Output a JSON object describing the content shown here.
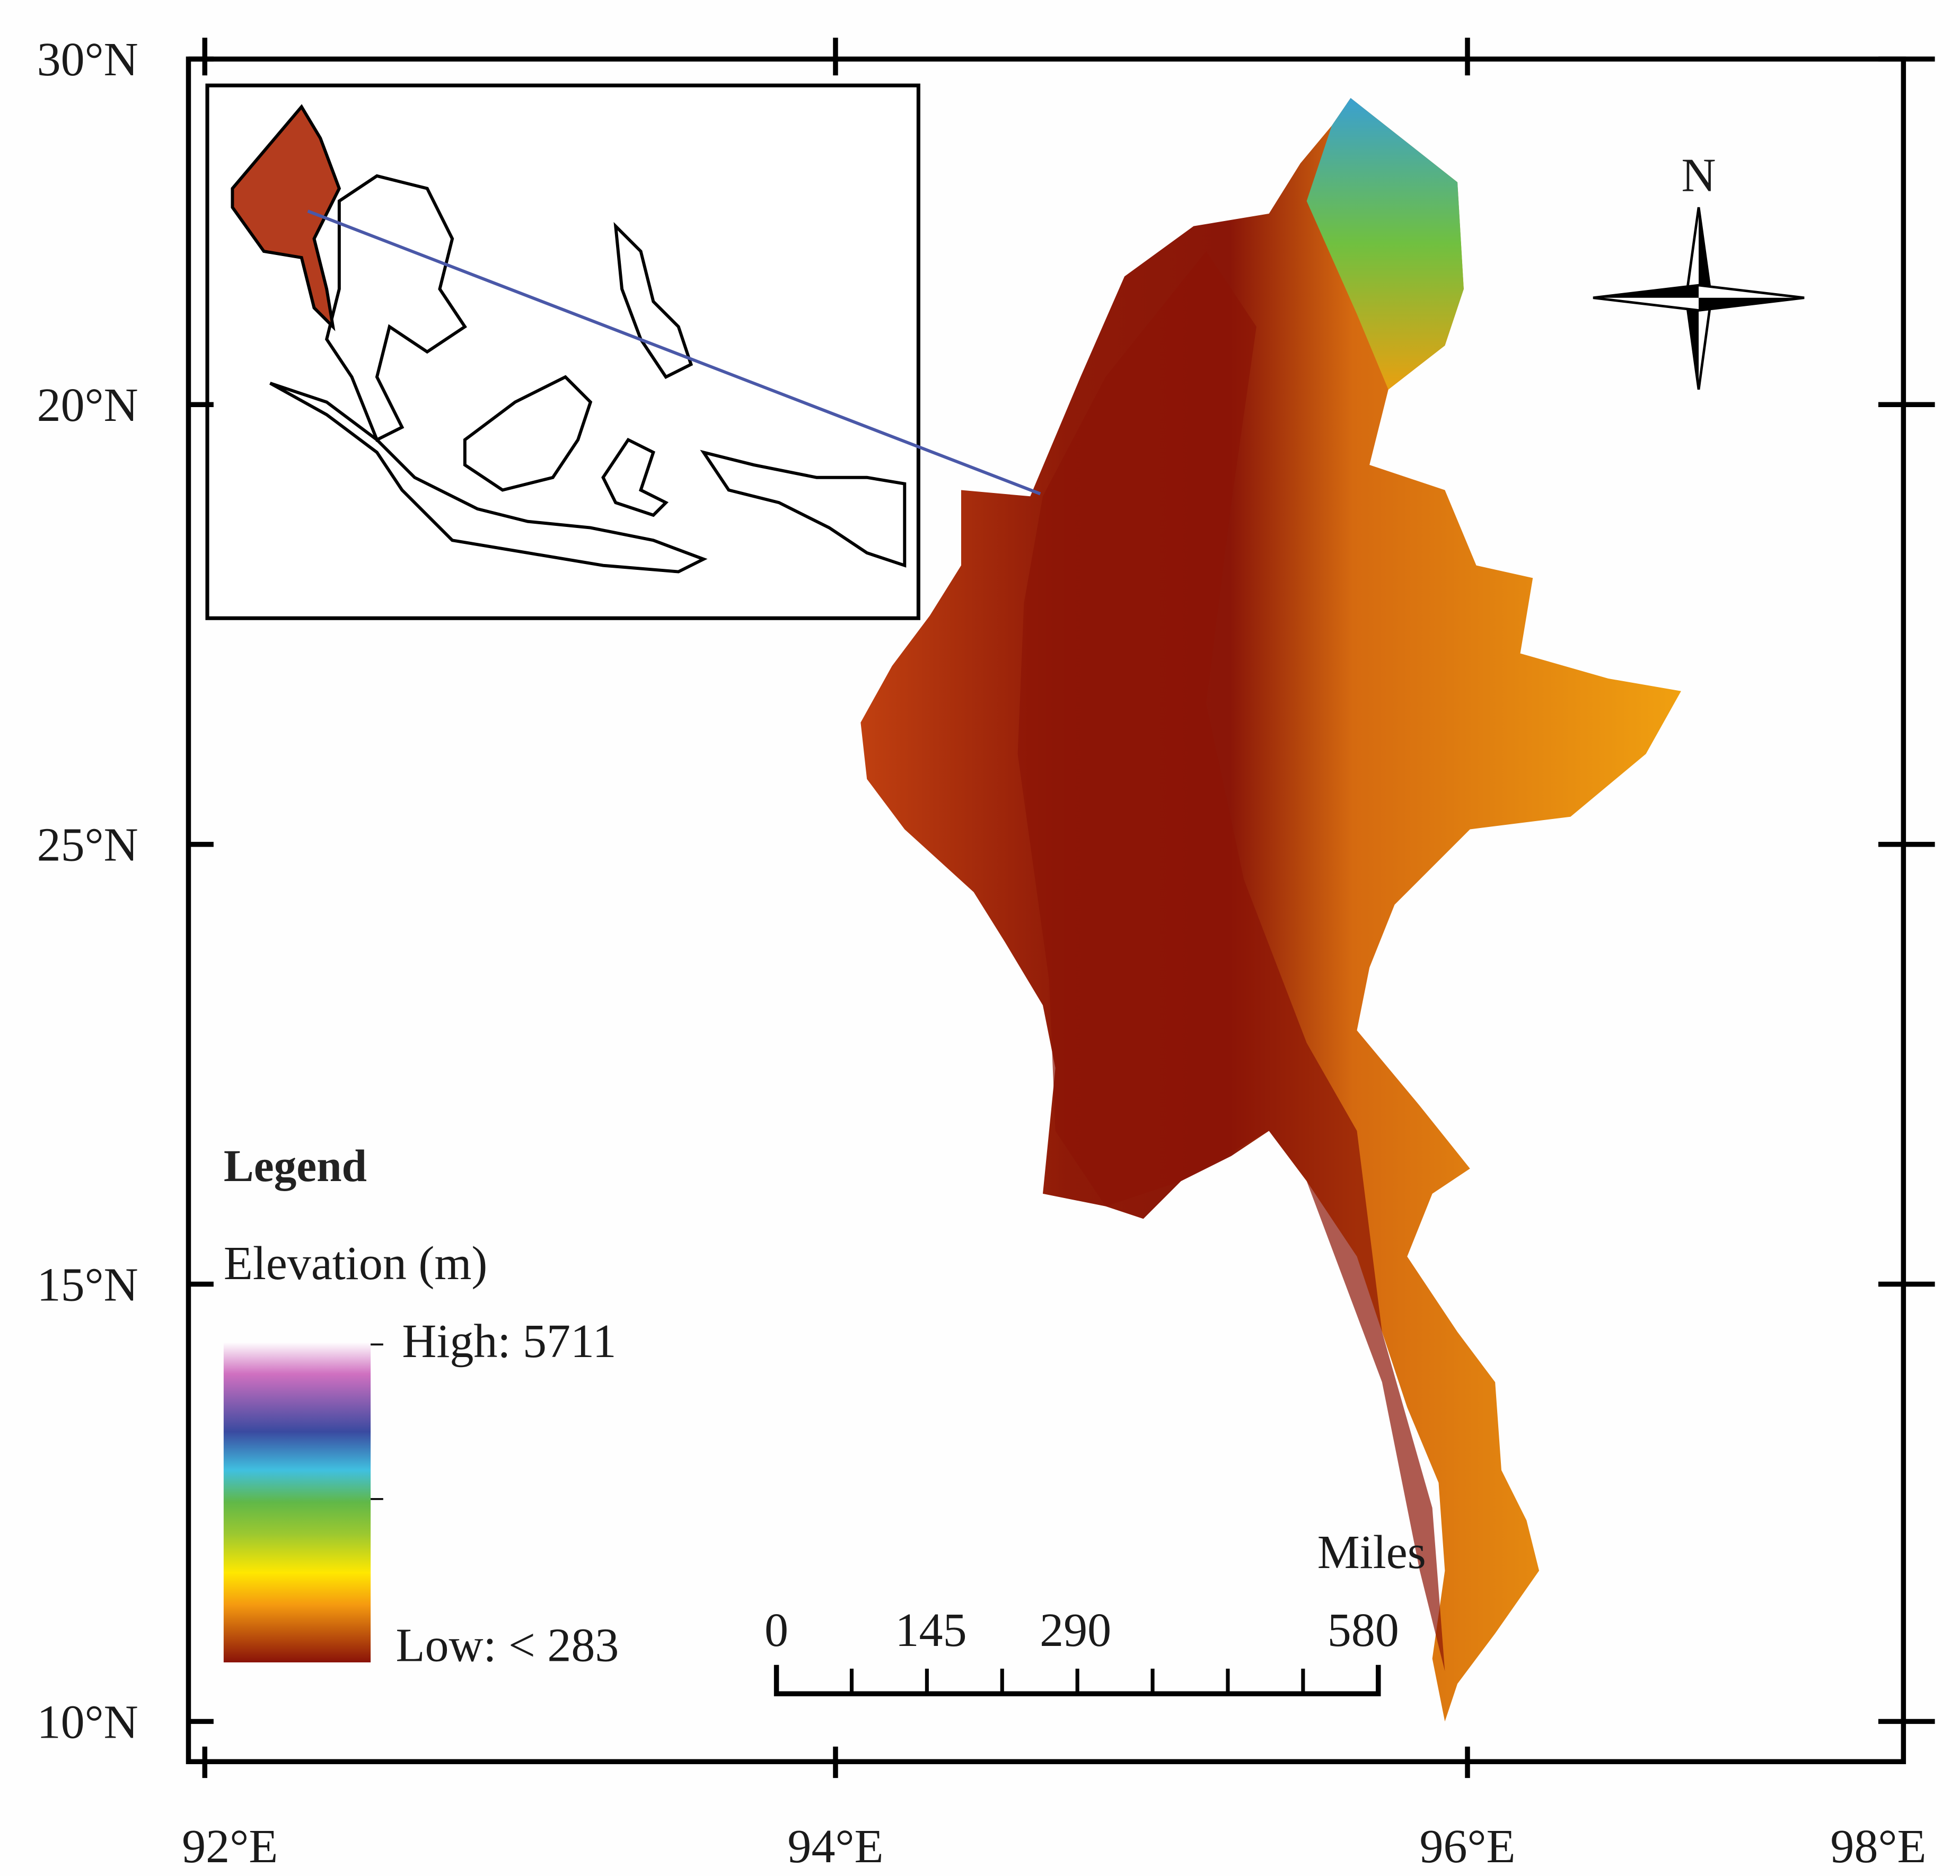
{
  "map": {
    "lat_ticks": [
      "30°N",
      "20°N",
      "25°N",
      "15°N",
      "10°N"
    ],
    "lon_ticks": [
      "92°E",
      "94°E",
      "96°E",
      "98°E"
    ],
    "compass": "N",
    "legend": {
      "title": "Legend",
      "subtitle": "Elevation (m)",
      "high": "High: 5711",
      "low": "Low: < 283"
    },
    "scale_bar": {
      "unit": "Miles",
      "labels": [
        "0",
        "145",
        "290",
        "580"
      ]
    }
  }
}
